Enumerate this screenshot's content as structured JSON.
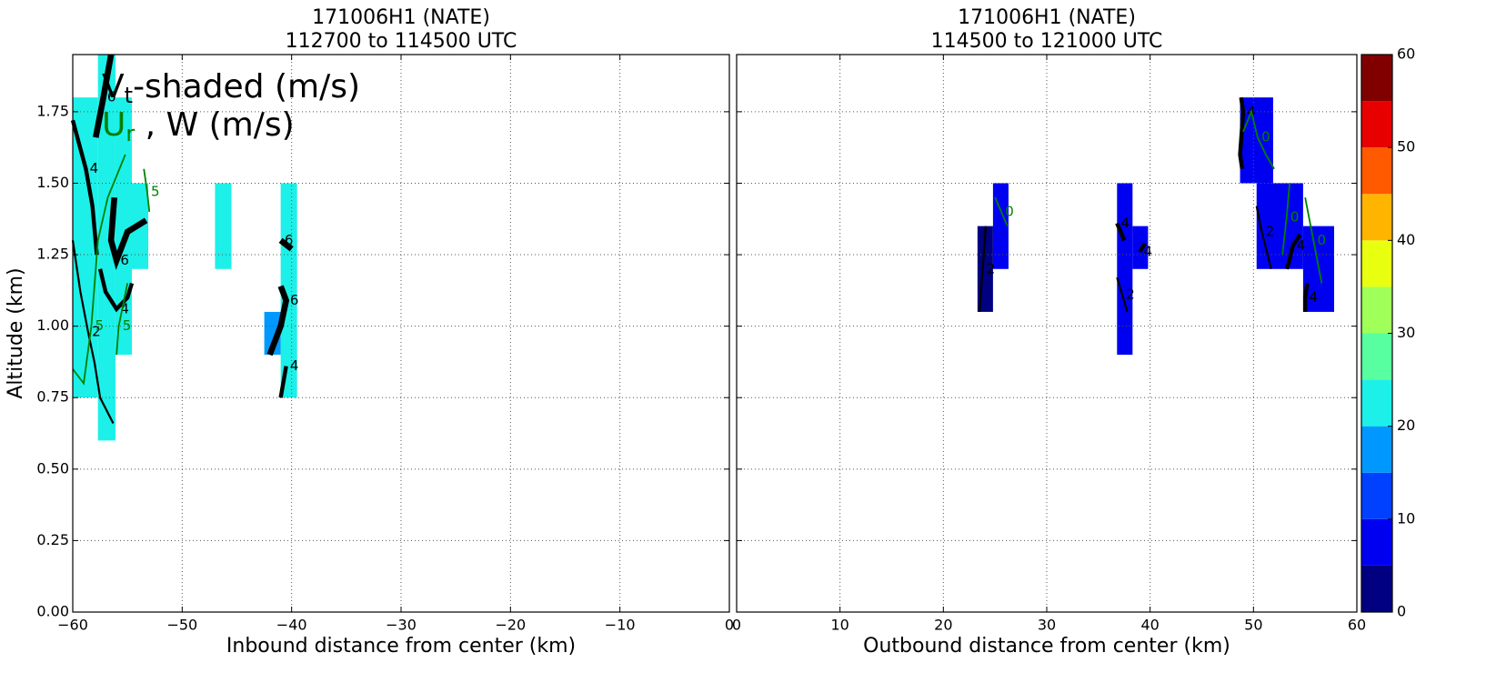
{
  "chart_data": [
    {
      "type": "heatmap",
      "title": [
        "171006H1 (NATE)",
        "112700 to 114500 UTC"
      ],
      "xlabel": "Inbound distance from center (km)",
      "ylabel": "Altitude (km)",
      "annotation": {
        "lines": [
          [
            "V",
            "t",
            "-shaded (m/s)"
          ],
          [
            "U",
            "r",
            " , W (m/s)"
          ]
        ],
        "colors": [
          [
            "#000000",
            "#000000",
            "#000000"
          ],
          [
            "#008000",
            "#008000",
            "#000000"
          ]
        ]
      },
      "xlim": [
        -60,
        0
      ],
      "xticks": [
        {
          "value": -60,
          "label": "−60"
        },
        {
          "value": -50,
          "label": "−50"
        },
        {
          "value": -40,
          "label": "−40"
        },
        {
          "value": -30,
          "label": "−30"
        },
        {
          "value": -20,
          "label": "−20"
        },
        {
          "value": -10,
          "label": "−10"
        },
        0
      ],
      "ylim": [
        0,
        1.95
      ],
      "yticks": [
        {
          "value": 0,
          "label": "0.00"
        },
        {
          "value": 0.25,
          "label": "0.25"
        },
        {
          "value": 0.5,
          "label": "0.50"
        },
        {
          "value": 0.75,
          "label": "0.75"
        },
        {
          "value": 1,
          "label": "1.00"
        },
        {
          "value": 1.25,
          "label": "1.25"
        },
        {
          "value": 1.5,
          "label": "1.50"
        },
        {
          "value": 1.75,
          "label": "1.75"
        }
      ],
      "grid": true,
      "cells": [
        {
          "x": [
            -60,
            -57.7
          ],
          "y": [
            0.75,
            1.8
          ],
          "value": 22.5
        },
        {
          "x": [
            -57.7,
            -56.1
          ],
          "y": [
            0.6,
            1.95
          ],
          "value": 22.5
        },
        {
          "x": [
            -56.1,
            -54.6
          ],
          "y": [
            0.9,
            1.8
          ],
          "value": 22.5
        },
        {
          "x": [
            -54.6,
            -53.1
          ],
          "y": [
            1.2,
            1.5
          ],
          "value": 22.5
        },
        {
          "x": [
            -47,
            -45.5
          ],
          "y": [
            1.2,
            1.5
          ],
          "value": 22.5
        },
        {
          "x": [
            -41,
            -39.5
          ],
          "y": [
            0.75,
            1.5
          ],
          "value": 22.5
        },
        {
          "x": [
            -42.5,
            -41
          ],
          "y": [
            0.9,
            1.05
          ],
          "value": 17.5
        }
      ],
      "contours": [
        {
          "level": 6,
          "color": "#000000",
          "x": [
            -56.5,
            -57.2,
            -57.9
          ],
          "y": [
            1.95,
            1.8,
            1.66
          ]
        },
        {
          "level": 6,
          "color": "#000000",
          "x": [
            -56.2,
            -56.5,
            -56,
            -55,
            -53.3
          ],
          "y": [
            1.45,
            1.3,
            1.23,
            1.33,
            1.37
          ]
        },
        {
          "level": 4,
          "color": "#000000",
          "x": [
            -60,
            -58.8,
            -58.2,
            -57.8
          ],
          "y": [
            1.72,
            1.55,
            1.42,
            1.25
          ]
        },
        {
          "level": 4,
          "color": "#000000",
          "x": [
            -57.5,
            -57,
            -56,
            -55,
            -54.6
          ],
          "y": [
            1.2,
            1.12,
            1.06,
            1.1,
            1.15
          ]
        },
        {
          "level": 2,
          "color": "#000000",
          "x": [
            -60,
            -59.3,
            -58.6,
            -58,
            -57.5,
            -56.3
          ],
          "y": [
            1.3,
            1.12,
            0.98,
            0.87,
            0.75,
            0.66
          ]
        },
        {
          "level": 6,
          "color": "#000000",
          "x": [
            -41,
            -40
          ],
          "y": [
            1.3,
            1.27
          ]
        },
        {
          "level": 6,
          "color": "#000000",
          "x": [
            -41,
            -40.5,
            -41,
            -42
          ],
          "y": [
            1.14,
            1.09,
            1.0,
            0.9
          ]
        },
        {
          "level": 4,
          "color": "#000000",
          "x": [
            -40.5,
            -41
          ],
          "y": [
            0.86,
            0.75
          ]
        },
        {
          "level": 5,
          "color": "#008000",
          "x": [
            -60,
            -59,
            -58.3,
            -57.7,
            -56.8,
            -55.2
          ],
          "y": [
            0.85,
            0.8,
            1.0,
            1.3,
            1.45,
            1.6
          ]
        },
        {
          "level": 5,
          "color": "#008000",
          "x": [
            -55,
            -55.8,
            -56
          ],
          "y": [
            1.15,
            1.0,
            0.9
          ]
        },
        {
          "level": 5,
          "color": "#008000",
          "x": [
            -53.5,
            -53.2,
            -53
          ],
          "y": [
            1.55,
            1.47,
            1.4
          ]
        }
      ]
    },
    {
      "type": "heatmap",
      "title": [
        "171006H1 (NATE)",
        "114500 to 121000 UTC"
      ],
      "xlabel": "Outbound distance from center (km)",
      "xlim": [
        0,
        60
      ],
      "xticks": [
        0,
        10,
        20,
        30,
        40,
        50,
        60
      ],
      "ylim": [
        0,
        1.95
      ],
      "grid": true,
      "cells": [
        {
          "x": [
            23.3,
            24.8
          ],
          "y": [
            1.05,
            1.35
          ],
          "value": 2.5
        },
        {
          "x": [
            24.8,
            26.3
          ],
          "y": [
            1.2,
            1.5
          ],
          "value": 7.5
        },
        {
          "x": [
            36.8,
            38.3
          ],
          "y": [
            0.9,
            1.5
          ],
          "value": 7.5
        },
        {
          "x": [
            38.3,
            39.8
          ],
          "y": [
            1.2,
            1.35
          ],
          "value": 7.5
        },
        {
          "x": [
            48.7,
            51.9
          ],
          "y": [
            1.5,
            1.8
          ],
          "value": 7.5
        },
        {
          "x": [
            50.3,
            54.8
          ],
          "y": [
            1.2,
            1.5
          ],
          "value": 7.5
        },
        {
          "x": [
            54.8,
            57.8
          ],
          "y": [
            1.05,
            1.35
          ],
          "value": 7.5
        }
      ],
      "contours": [
        {
          "level": 2,
          "color": "#000000",
          "x": [
            23.5,
            23.8,
            24.1
          ],
          "y": [
            1.05,
            1.2,
            1.35
          ]
        },
        {
          "level": 4,
          "color": "#000000",
          "x": [
            36.8,
            37.5
          ],
          "y": [
            1.36,
            1.3
          ]
        },
        {
          "level": 4,
          "color": "#000000",
          "x": [
            39,
            39.5
          ],
          "y": [
            1.26,
            1.29
          ]
        },
        {
          "level": 2,
          "color": "#000000",
          "x": [
            36.8,
            37.3,
            37.8
          ],
          "y": [
            1.17,
            1.11,
            1.05
          ]
        },
        {
          "level": 4,
          "color": "#000000",
          "x": [
            48.8,
            49,
            48.7,
            48.9
          ],
          "y": [
            1.8,
            1.75,
            1.6,
            1.55
          ]
        },
        {
          "level": 2,
          "color": "#000000",
          "x": [
            50.3,
            50.8,
            51.3,
            51.7
          ],
          "y": [
            1.42,
            1.33,
            1.26,
            1.2
          ]
        },
        {
          "level": 4,
          "color": "#000000",
          "x": [
            54.5,
            53.8,
            53.4,
            53.2
          ],
          "y": [
            1.32,
            1.28,
            1.22,
            1.2
          ]
        },
        {
          "level": 4,
          "color": "#000000",
          "x": [
            55.2,
            55,
            55
          ],
          "y": [
            1.15,
            1.1,
            1.05
          ]
        },
        {
          "level": 0,
          "color": "#008000",
          "x": [
            25,
            25.6,
            26.2
          ],
          "y": [
            1.45,
            1.4,
            1.35
          ]
        },
        {
          "level": 0,
          "color": "#008000",
          "x": [
            49,
            49.8,
            50.4,
            51.2,
            52
          ],
          "y": [
            1.68,
            1.75,
            1.66,
            1.6,
            1.55
          ]
        },
        {
          "level": 0,
          "color": "#008000",
          "x": [
            53.5,
            53.2,
            52.8
          ],
          "y": [
            1.5,
            1.38,
            1.25
          ]
        },
        {
          "level": 0,
          "color": "#008000",
          "x": [
            55,
            55.8,
            56.6
          ],
          "y": [
            1.45,
            1.3,
            1.15
          ]
        }
      ],
      "colorbar": {
        "levels": [
          0,
          5,
          10,
          15,
          20,
          25,
          30,
          35,
          40,
          45,
          50,
          55,
          60
        ],
        "colors": [
          "#000080",
          "#0000f1",
          "#0040ff",
          "#0098ff",
          "#1cf0e8",
          "#58ffa0",
          "#a0ff58",
          "#e8ff10",
          "#ffb400",
          "#ff5a00",
          "#e80000",
          "#800000"
        ],
        "ticks": [
          0,
          10,
          20,
          30,
          40,
          50,
          60
        ]
      }
    }
  ]
}
